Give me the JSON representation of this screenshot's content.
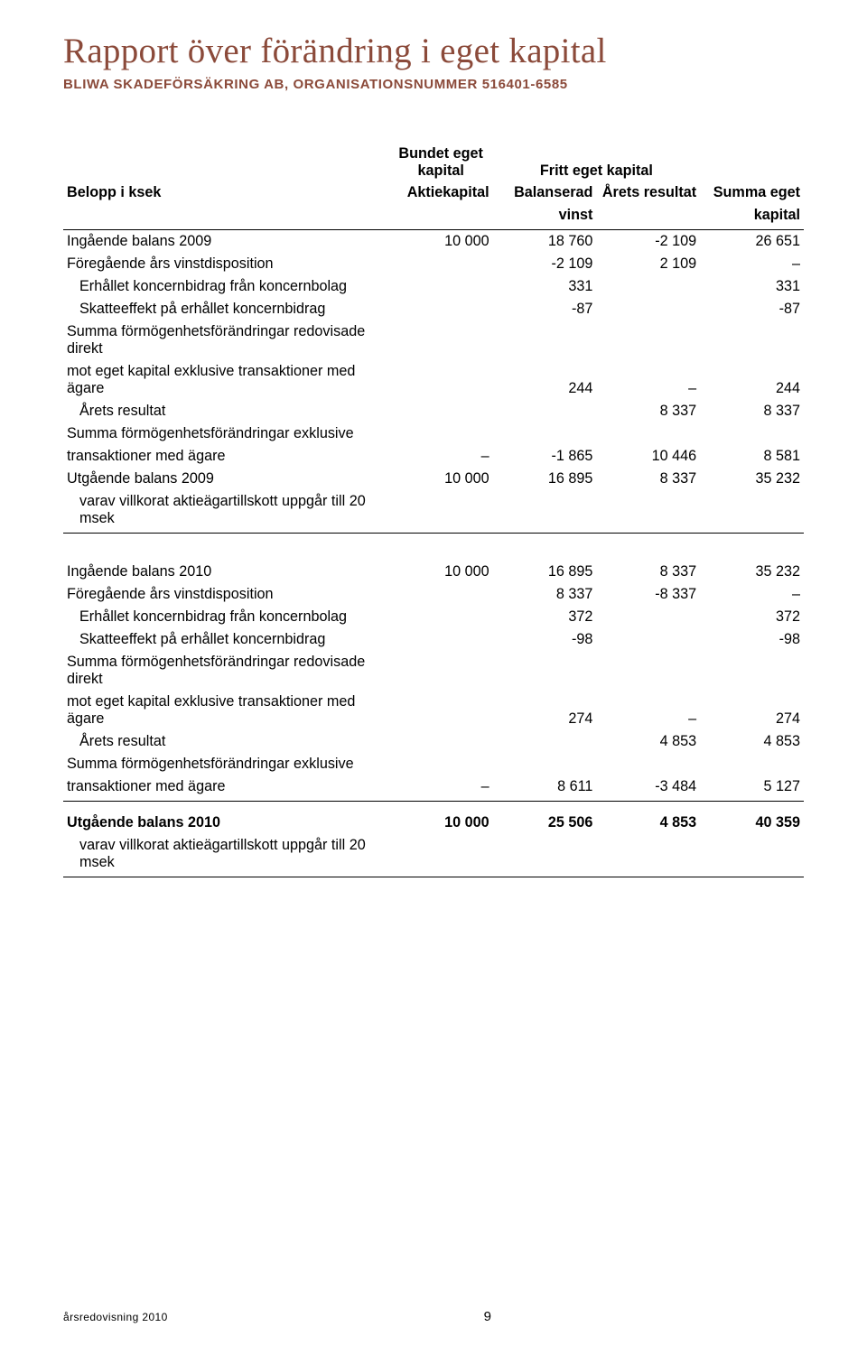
{
  "title": "Rapport över förändring i eget kapital",
  "subtitle": "bliwa skadeförsäkring ab, organisationsnummer 516401-6585",
  "headers": {
    "group_bundet": "Bundet eget kapital",
    "group_fritt": "Fritt eget kapital",
    "belopp": "Belopp i ksek",
    "aktie": "Aktiekapital",
    "balanserad": "Balanserad",
    "vinst": "vinst",
    "arets": "Årets resultat",
    "summa": "Summa eget",
    "kapital": "kapital"
  },
  "block2009": {
    "ingaende": {
      "label": "Ingående balans 2009",
      "c1": "10 000",
      "c2": "18 760",
      "c3": "-2 109",
      "c4": "26 651"
    },
    "vinstdisp": {
      "label": "Föregående års vinstdisposition",
      "c2": "-2 109",
      "c3": "2 109",
      "c4": "–"
    },
    "erhallet": {
      "label": "Erhållet koncernbidrag från koncernbolag",
      "c2": "331",
      "c4": "331"
    },
    "skatteeffekt": {
      "label": "Skatteeffekt på erhållet koncernbidrag",
      "c2": "-87",
      "c4": "-87"
    },
    "direkt_a": {
      "label": "Summa förmögenhetsförändringar redovisade direkt"
    },
    "direkt_b": {
      "label": "mot eget kapital exklusive transaktioner med ägare",
      "c2": "244",
      "c3": "–",
      "c4": "244"
    },
    "arets": {
      "label": "Årets resultat",
      "c3": "8 337",
      "c4": "8 337"
    },
    "exkl_a": {
      "label": "Summa förmögenhetsförändringar exklusive"
    },
    "exkl_b": {
      "label": "transaktioner med ägare",
      "c1": "–",
      "c2": "-1 865",
      "c3": "10 446",
      "c4": "8 581"
    },
    "utgaende": {
      "label": "Utgående balans 2009",
      "c1": "10 000",
      "c2": "16 895",
      "c3": "8 337",
      "c4": "35 232"
    },
    "varav": {
      "label": "varav villkorat aktieägartillskott uppgår till 20 msek"
    }
  },
  "block2010": {
    "ingaende": {
      "label": "Ingående balans 2010",
      "c1": "10 000",
      "c2": "16 895",
      "c3": "8 337",
      "c4": "35 232"
    },
    "vinstdisp": {
      "label": "Föregående års vinstdisposition",
      "c2": "8 337",
      "c3": "-8 337",
      "c4": "–"
    },
    "erhallet": {
      "label": "Erhållet koncernbidrag från koncernbolag",
      "c2": "372",
      "c4": "372"
    },
    "skatteeffekt": {
      "label": "Skatteeffekt på erhållet koncernbidrag",
      "c2": "-98",
      "c4": "-98"
    },
    "direkt_a": {
      "label": "Summa förmögenhetsförändringar redovisade direkt"
    },
    "direkt_b": {
      "label": "mot eget kapital exklusive transaktioner med ägare",
      "c2": "274",
      "c3": "–",
      "c4": "274"
    },
    "arets": {
      "label": "Årets resultat",
      "c3": "4 853",
      "c4": "4 853"
    },
    "exkl_a": {
      "label": "Summa förmögenhetsförändringar exklusive"
    },
    "exkl_b": {
      "label": "transaktioner med ägare",
      "c1": "–",
      "c2": "8 611",
      "c3": "-3 484",
      "c4": "5 127"
    }
  },
  "total2010": {
    "utgaende": {
      "label": "Utgående balans 2010",
      "c1": "10 000",
      "c2": "25 506",
      "c3": "4 853",
      "c4": "40 359"
    },
    "varav": {
      "label": "varav villkorat aktieägartillskott uppgår till 20 msek"
    }
  },
  "footer": {
    "ar": "årsredovisning 2010",
    "page": "9"
  }
}
